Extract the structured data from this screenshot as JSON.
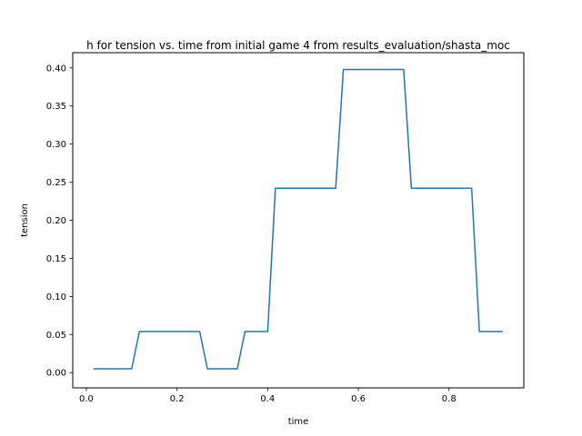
{
  "chart_data": {
    "type": "line",
    "title": "h for tension vs. time from initial game 4 from results_evaluation/shasta_moc",
    "xlabel": "time",
    "ylabel": "tension",
    "xlim": [
      -0.03,
      0.965
    ],
    "ylim": [
      -0.02,
      0.42
    ],
    "xticks": [
      0.0,
      0.2,
      0.4,
      0.6,
      0.8
    ],
    "xtick_labels": [
      "0.0",
      "0.2",
      "0.4",
      "0.6",
      "0.8"
    ],
    "yticks": [
      0.0,
      0.05,
      0.1,
      0.15,
      0.2,
      0.25,
      0.3,
      0.35,
      0.4
    ],
    "ytick_labels": [
      "0.00",
      "0.05",
      "0.10",
      "0.15",
      "0.20",
      "0.25",
      "0.30",
      "0.35",
      "0.40"
    ],
    "grid": false,
    "series": [
      {
        "color": "#1f77b4",
        "x": [
          0.017,
          0.1,
          0.117,
          0.25,
          0.267,
          0.333,
          0.35,
          0.4,
          0.417,
          0.55,
          0.567,
          0.7,
          0.717,
          0.85,
          0.867,
          0.917
        ],
        "y": [
          0.005,
          0.005,
          0.054,
          0.054,
          0.005,
          0.005,
          0.054,
          0.054,
          0.242,
          0.242,
          0.398,
          0.398,
          0.242,
          0.242,
          0.054,
          0.054
        ]
      }
    ]
  }
}
